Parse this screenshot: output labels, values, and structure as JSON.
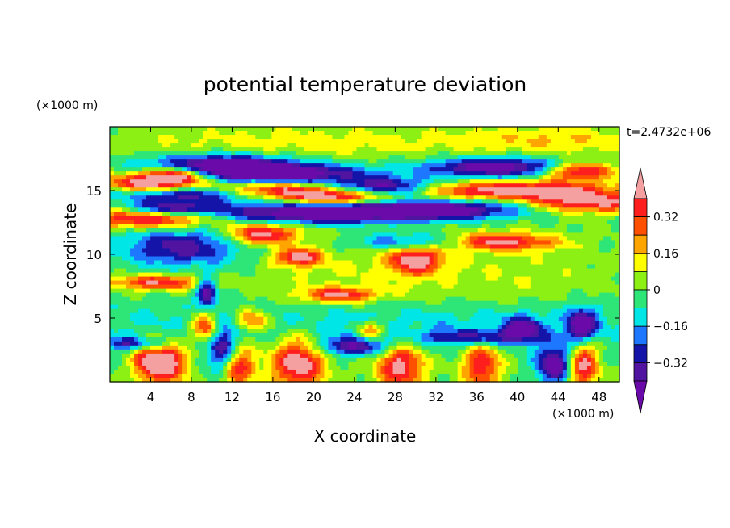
{
  "chart_data": {
    "type": "heatmap",
    "title": "potential temperature deviation",
    "xlabel": "X coordinate",
    "ylabel": "Z coordinate",
    "x_unit": "(×1000 m)",
    "y_unit": "(×1000 m)",
    "time_label": "t=2.4732e+06",
    "xlim": [
      0,
      50
    ],
    "ylim": [
      0,
      20
    ],
    "x_ticks": [
      4,
      8,
      12,
      16,
      20,
      24,
      28,
      32,
      36,
      40,
      44,
      48
    ],
    "y_ticks": [
      5,
      10,
      15
    ],
    "colorbar": {
      "levels": [
        -0.4,
        -0.32,
        -0.24,
        -0.16,
        -0.08,
        0,
        0.08,
        0.16,
        0.24,
        0.32,
        0.4
      ],
      "tick_labels": [
        "0.32",
        "0.16",
        "0",
        "−0.16",
        "−0.32"
      ],
      "colors": [
        "#6a0aa8",
        "#5014a0",
        "#1414a8",
        "#1e78ff",
        "#00e6e6",
        "#2ee678",
        "#8cf014",
        "#ffff00",
        "#ffa500",
        "#ff5000",
        "#ff1e1e",
        "#f5a0a0"
      ]
    },
    "features": [
      {
        "x": 4,
        "z": 15.5,
        "sx": 3.2,
        "sy": 0.55,
        "v": 0.5
      },
      {
        "x": 6.5,
        "z": 16.2,
        "sx": 2.2,
        "sy": 0.45,
        "v": 0.45
      },
      {
        "x": 16,
        "z": 15.0,
        "sx": 4.5,
        "sy": 0.45,
        "v": 0.45
      },
      {
        "x": 22,
        "z": 14.4,
        "sx": 3.2,
        "sy": 0.4,
        "v": 0.45
      },
      {
        "x": 40,
        "z": 15.0,
        "sx": 7,
        "sy": 0.5,
        "v": 0.5
      },
      {
        "x": 46,
        "z": 16.5,
        "sx": 2.5,
        "sy": 0.5,
        "v": 0.5
      },
      {
        "x": 47,
        "z": 14.0,
        "sx": 4,
        "sy": 0.5,
        "v": 0.45
      },
      {
        "x": 4,
        "z": 12.8,
        "sx": 5,
        "sy": 0.55,
        "v": 0.5
      },
      {
        "x": 15,
        "z": 11.6,
        "sx": 2.5,
        "sy": 0.6,
        "v": 0.5
      },
      {
        "x": 18.5,
        "z": 9.8,
        "sx": 1.6,
        "sy": 0.5,
        "v": 0.45
      },
      {
        "x": 30,
        "z": 9.6,
        "sx": 1.8,
        "sy": 0.8,
        "v": 0.45
      },
      {
        "x": 38,
        "z": 11.0,
        "sx": 4,
        "sy": 0.5,
        "v": 0.45
      },
      {
        "x": 4.5,
        "z": 7.8,
        "sx": 3.2,
        "sy": 0.4,
        "v": 0.4
      },
      {
        "x": 22.5,
        "z": 6.8,
        "sx": 2.5,
        "sy": 0.4,
        "v": 0.4
      },
      {
        "x": 9.5,
        "z": 4.3,
        "sx": 1.0,
        "sy": 0.9,
        "v": 0.45
      },
      {
        "x": 14,
        "z": 4.8,
        "sx": 1.2,
        "sy": 0.6,
        "v": 0.35
      },
      {
        "x": 25.5,
        "z": 4.0,
        "sx": 0.9,
        "sy": 0.5,
        "v": 0.35
      },
      {
        "x": 3.8,
        "z": 1.6,
        "sx": 1.1,
        "sy": 1.1,
        "v": 0.45
      },
      {
        "x": 6,
        "z": 1.5,
        "sx": 1.1,
        "sy": 1.2,
        "v": 0.45
      },
      {
        "x": 12.5,
        "z": 1.3,
        "sx": 1.2,
        "sy": 1.3,
        "v": 0.4
      },
      {
        "x": 18.5,
        "z": 1.6,
        "sx": 1.8,
        "sy": 1.5,
        "v": 0.5
      },
      {
        "x": 28.5,
        "z": 1.3,
        "sx": 1.6,
        "sy": 1.4,
        "v": 0.45
      },
      {
        "x": 36.5,
        "z": 1.3,
        "sx": 1.3,
        "sy": 1.3,
        "v": 0.4
      },
      {
        "x": 46.5,
        "z": 1.4,
        "sx": 1.0,
        "sy": 1.3,
        "v": 0.45
      },
      {
        "x": 11,
        "z": 17.0,
        "sx": 5,
        "sy": 0.6,
        "v": -0.48
      },
      {
        "x": 17,
        "z": 16.3,
        "sx": 5.5,
        "sy": 0.55,
        "v": -0.5
      },
      {
        "x": 38,
        "z": 16.8,
        "sx": 5,
        "sy": 0.55,
        "v": -0.5
      },
      {
        "x": 7.5,
        "z": 14.7,
        "sx": 5,
        "sy": 0.45,
        "v": -0.45
      },
      {
        "x": 27,
        "z": 15.3,
        "sx": 3.5,
        "sy": 0.5,
        "v": -0.45
      },
      {
        "x": 20,
        "z": 13.2,
        "sx": 8,
        "sy": 0.55,
        "v": -0.5
      },
      {
        "x": 32,
        "z": 13.5,
        "sx": 6,
        "sy": 0.5,
        "v": -0.45
      },
      {
        "x": 6,
        "z": 13.6,
        "sx": 3,
        "sy": 0.35,
        "v": -0.4
      },
      {
        "x": 7,
        "z": 10.4,
        "sx": 3.5,
        "sy": 0.9,
        "v": -0.25
      },
      {
        "x": 30,
        "z": 11.0,
        "sx": 4,
        "sy": 0.5,
        "v": -0.32
      },
      {
        "x": 9.5,
        "z": 7.0,
        "sx": 0.7,
        "sy": 0.9,
        "v": -0.45
      },
      {
        "x": 2.5,
        "z": 3.0,
        "sx": 2.5,
        "sy": 0.35,
        "v": -0.3
      },
      {
        "x": 11,
        "z": 2.6,
        "sx": 1.0,
        "sy": 1.3,
        "v": -0.45
      },
      {
        "x": 24,
        "z": 2.8,
        "sx": 3,
        "sy": 0.5,
        "v": -0.35
      },
      {
        "x": 43.5,
        "z": 1.4,
        "sx": 1.2,
        "sy": 1.0,
        "v": -0.5
      },
      {
        "x": 46.3,
        "z": 4.4,
        "sx": 1.0,
        "sy": 0.9,
        "v": -0.5
      },
      {
        "x": 40.5,
        "z": 4.2,
        "sx": 1.2,
        "sy": 0.6,
        "v": -0.4
      },
      {
        "x": 36,
        "z": 3.5,
        "sx": 4,
        "sy": 0.4,
        "v": -0.3
      },
      {
        "x": 20,
        "z": 18.8,
        "sx": 14,
        "sy": 0.9,
        "v": 0.12
      },
      {
        "x": 44,
        "z": 19.0,
        "sx": 6,
        "sy": 0.8,
        "v": 0.14
      },
      {
        "x": 8,
        "z": 11.0,
        "sx": 7,
        "sy": 1.4,
        "v": -0.14
      },
      {
        "x": 25,
        "z": 8.5,
        "sx": 10,
        "sy": 2.2,
        "v": 0.08
      },
      {
        "x": 42,
        "z": 8.0,
        "sx": 6,
        "sy": 1.5,
        "v": 0.05
      },
      {
        "x": 25,
        "z": 4.5,
        "sx": 25,
        "sy": 1.3,
        "v": -0.14
      }
    ]
  }
}
